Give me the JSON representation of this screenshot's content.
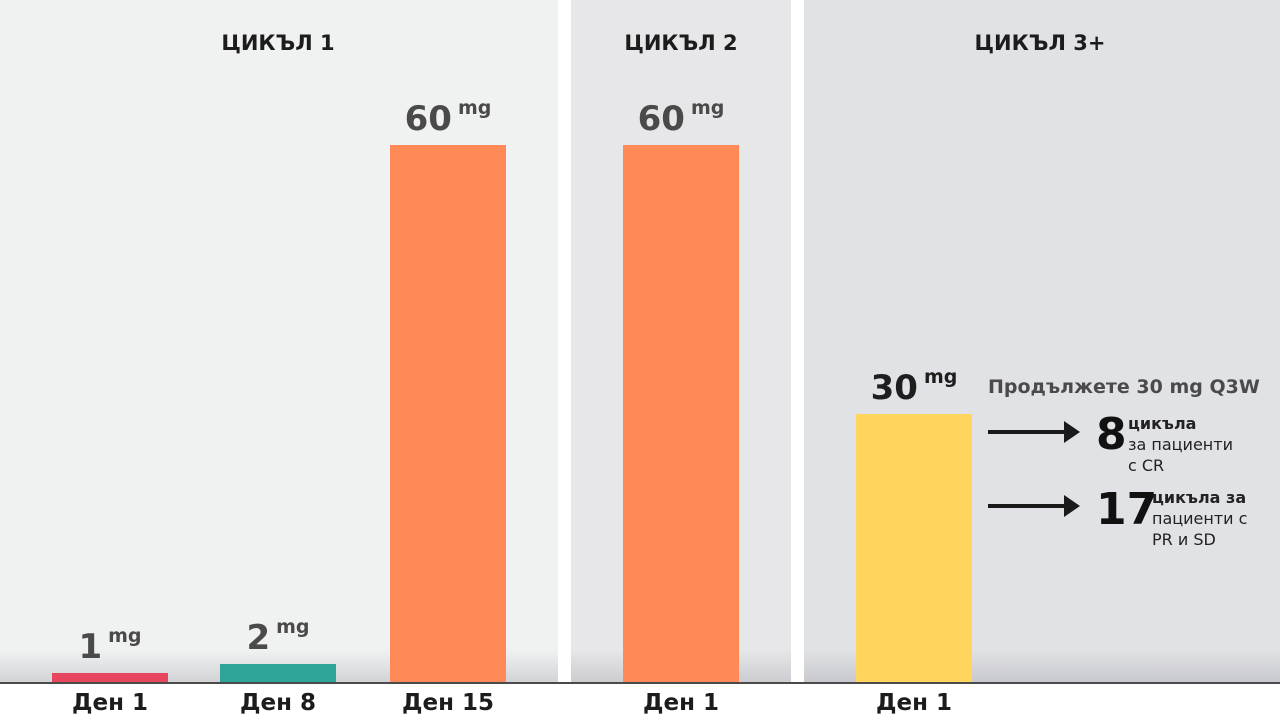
{
  "colors": {
    "panel_1": "#f0f1f1",
    "panel_2": "#e7e7e9",
    "panel_3": "#e1e2e5",
    "day1_bar": "#e8465e",
    "day8_bar": "#2fa59a",
    "day15_bar": "#ff8a58",
    "cycle2_bar": "#ff8a58",
    "cycle3_bar": "#ffd55e"
  },
  "chart_data": {
    "type": "bar",
    "unit": "mg",
    "ylim": [
      0,
      60
    ],
    "grid": false,
    "groups": [
      {
        "title": "ЦИКЪЛ 1",
        "bars": [
          {
            "category": "Ден 1",
            "value": 1,
            "value_label": "1",
            "color": "#e8465e"
          },
          {
            "category": "Ден 8",
            "value": 2,
            "value_label": "2",
            "color": "#2fa59a"
          },
          {
            "category": "Ден 15",
            "value": 60,
            "value_label": "60",
            "color": "#ff8a58"
          }
        ]
      },
      {
        "title": "ЦИКЪЛ 2",
        "bars": [
          {
            "category": "Ден 1",
            "value": 60,
            "value_label": "60",
            "color": "#ff8a58"
          }
        ]
      },
      {
        "title": "ЦИКЪЛ 3+",
        "bars": [
          {
            "category": "Ден 1",
            "value": 30,
            "value_label": "30",
            "color": "#ffd55e"
          }
        ]
      }
    ],
    "annotation": {
      "title": "Продължете 30 mg Q3W",
      "items": [
        {
          "number": "8",
          "line1": "цикъла",
          "line2": "за пациенти",
          "line3": "с CR"
        },
        {
          "number": "17",
          "line1": "цикъла за",
          "line2": "пациенти с",
          "line3": "PR и SD"
        }
      ]
    }
  }
}
